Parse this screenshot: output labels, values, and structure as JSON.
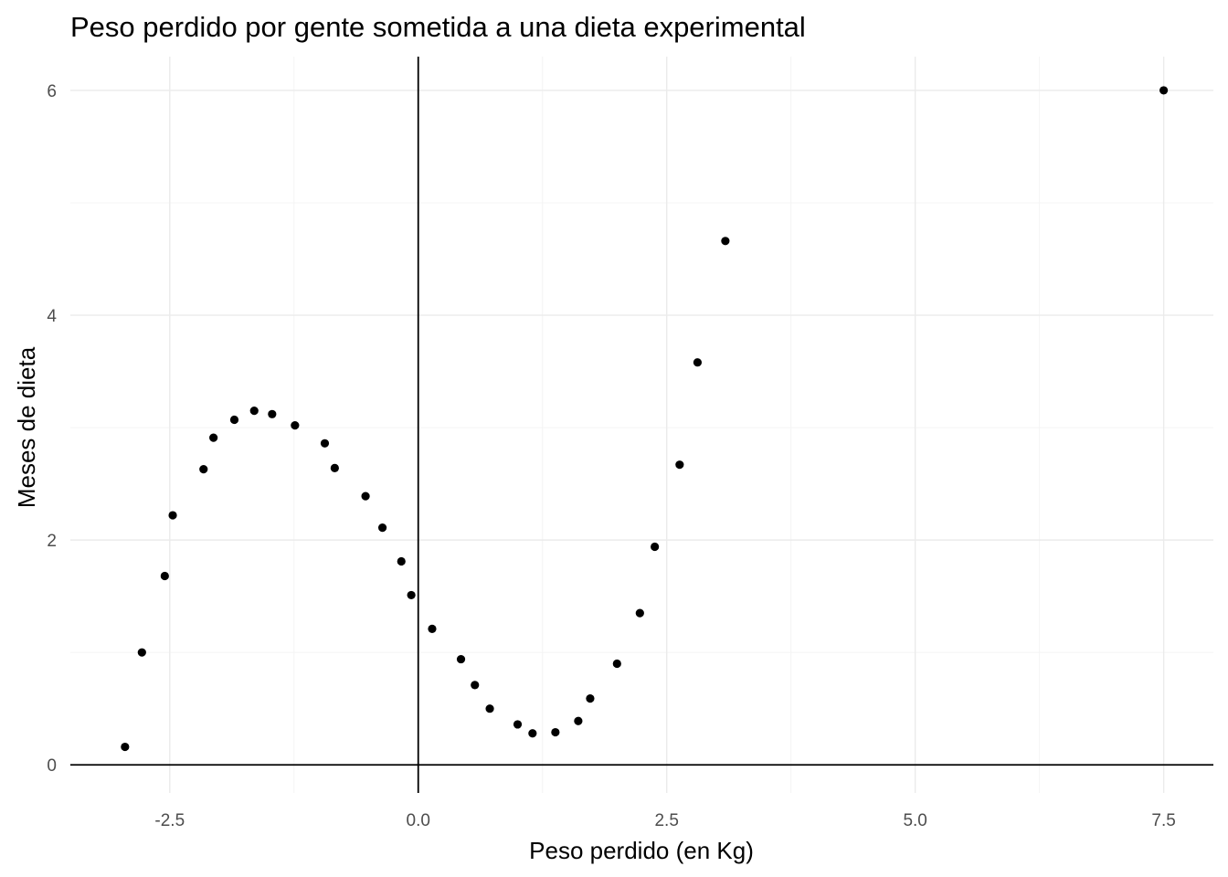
{
  "chart_data": {
    "type": "scatter",
    "title": "Peso perdido por gente sometida a una dieta experimental",
    "xlabel": "Peso perdido (en Kg)",
    "ylabel": "Meses de dieta",
    "xlim": [
      -3.5,
      8.0
    ],
    "ylim": [
      -0.25,
      6.3
    ],
    "x_ticks": [
      -2.5,
      0.0,
      2.5,
      5.0,
      7.5
    ],
    "x_tick_labels": [
      "-2.5",
      "0.0",
      "2.5",
      "5.0",
      "7.5"
    ],
    "y_ticks": [
      0,
      2,
      4,
      6
    ],
    "y_tick_labels": [
      "0",
      "2",
      "4",
      "6"
    ],
    "x_minor_ticks": [
      -1.25,
      1.25,
      3.75,
      6.25
    ],
    "y_minor_ticks": [
      1,
      3,
      5
    ],
    "grid": true,
    "reference_lines": {
      "x": 0,
      "y": 0
    },
    "point_color": "#000000",
    "points": [
      {
        "x": -2.95,
        "y": 0.16
      },
      {
        "x": -2.78,
        "y": 1.0
      },
      {
        "x": -2.55,
        "y": 1.68
      },
      {
        "x": -2.47,
        "y": 2.22
      },
      {
        "x": -2.16,
        "y": 2.63
      },
      {
        "x": -2.06,
        "y": 2.91
      },
      {
        "x": -1.85,
        "y": 3.07
      },
      {
        "x": -1.65,
        "y": 3.15
      },
      {
        "x": -1.47,
        "y": 3.12
      },
      {
        "x": -1.24,
        "y": 3.02
      },
      {
        "x": -0.94,
        "y": 2.86
      },
      {
        "x": -0.84,
        "y": 2.64
      },
      {
        "x": -0.53,
        "y": 2.39
      },
      {
        "x": -0.36,
        "y": 2.11
      },
      {
        "x": -0.17,
        "y": 1.81
      },
      {
        "x": -0.07,
        "y": 1.51
      },
      {
        "x": 0.14,
        "y": 1.21
      },
      {
        "x": 0.43,
        "y": 0.94
      },
      {
        "x": 0.57,
        "y": 0.71
      },
      {
        "x": 0.72,
        "y": 0.5
      },
      {
        "x": 1.0,
        "y": 0.36
      },
      {
        "x": 1.15,
        "y": 0.28
      },
      {
        "x": 1.38,
        "y": 0.29
      },
      {
        "x": 1.61,
        "y": 0.39
      },
      {
        "x": 1.73,
        "y": 0.59
      },
      {
        "x": 2.0,
        "y": 0.9
      },
      {
        "x": 2.23,
        "y": 1.35
      },
      {
        "x": 2.38,
        "y": 1.94
      },
      {
        "x": 2.63,
        "y": 2.67
      },
      {
        "x": 2.81,
        "y": 3.58
      },
      {
        "x": 3.09,
        "y": 4.66
      },
      {
        "x": 7.5,
        "y": 6.0
      }
    ]
  }
}
